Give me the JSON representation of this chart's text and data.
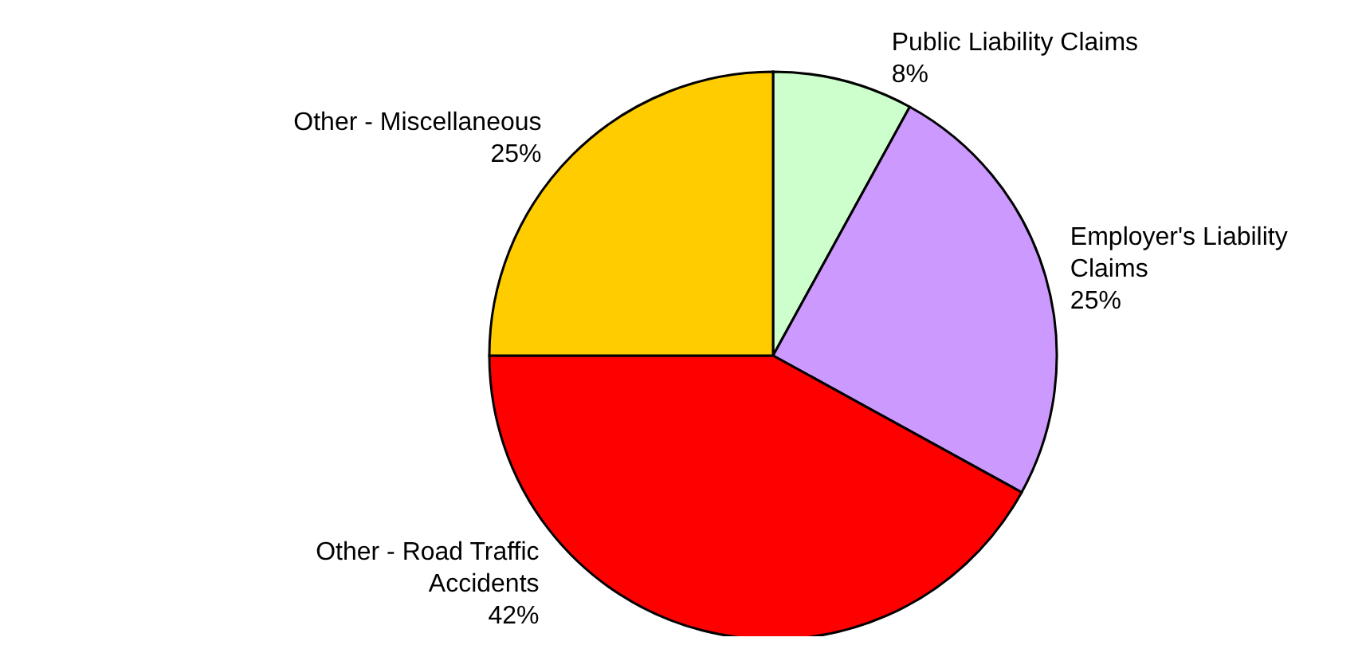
{
  "chart_data": {
    "type": "pie",
    "categories": [
      "Public Liability Claims",
      "Employer's Liability Claims",
      "Other - Road Traffic Accidents",
      "Other - Miscellaneous"
    ],
    "values": [
      8,
      25,
      42,
      25
    ],
    "colors": [
      "#ccffcc",
      "#cc99ff",
      "#ff0000",
      "#ffcc00"
    ],
    "value_labels": [
      "8%",
      "25%",
      "42%",
      "25%"
    ],
    "legend": false
  }
}
